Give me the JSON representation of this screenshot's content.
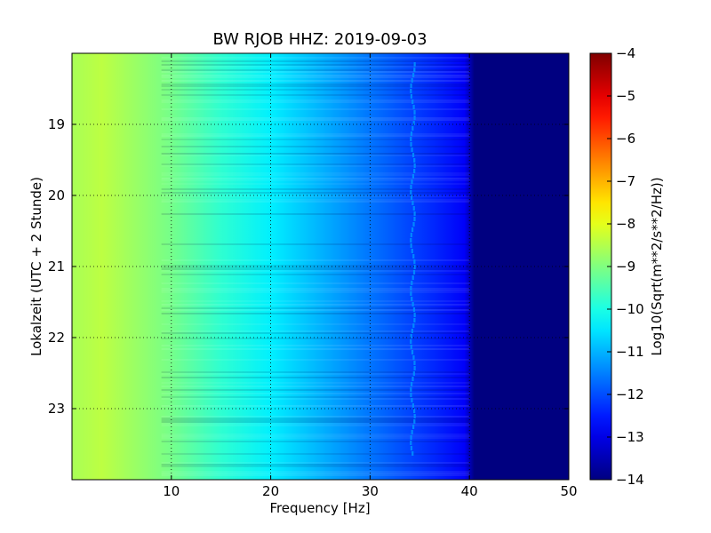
{
  "chart_data": {
    "type": "heatmap",
    "title": "BW RJOB HHZ: 2019-09-03",
    "xlabel": "Frequency [Hz]",
    "ylabel": "Lokalzeit (UTC + 2 Stunde)",
    "xlim": [
      0,
      50
    ],
    "ylim": [
      24,
      18.0
    ],
    "x_ticks": [
      10,
      20,
      30,
      40,
      50
    ],
    "y_ticks": [
      19,
      20,
      21,
      22,
      23
    ],
    "grid": true,
    "colormap": "jet",
    "colorbar": {
      "label": "Log10(Sqrt(m**2/s**2/Hz))",
      "range": [
        -14,
        -4
      ],
      "ticks": [
        -4,
        -5,
        -6,
        -7,
        -8,
        -9,
        -10,
        -11,
        -12,
        -13,
        -14
      ]
    },
    "spectrum_profile": {
      "frequency_hz": [
        0,
        3,
        6,
        10,
        15,
        20,
        25,
        30,
        35,
        39.5,
        40.5,
        50
      ],
      "log_psd": [
        -8.6,
        -8.4,
        -8.7,
        -9.1,
        -9.8,
        -10.4,
        -11.0,
        -11.6,
        -12.2,
        -12.8,
        -14.0,
        -14.0
      ]
    },
    "spectral_line": {
      "frequency_hz": 34.2,
      "log_psd": -11.3
    }
  }
}
